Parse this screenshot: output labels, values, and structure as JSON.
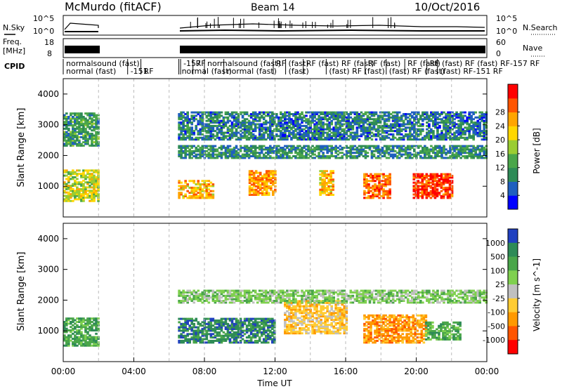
{
  "header": {
    "station": "McMurdo (fitACF)",
    "beam": "Beam 14",
    "date": "10/Oct/2016"
  },
  "noise_panel": {
    "left_label": "N.Sky",
    "right_label": "N.Search",
    "ticks": [
      "10^5",
      "10^0"
    ]
  },
  "freq_panel": {
    "left_label_1": "Freq.",
    "left_label_2": "[MHz]",
    "right_label": "Nave",
    "left_ticks": [
      "18",
      "8"
    ],
    "right_ticks": [
      "60",
      "0"
    ]
  },
  "cpid": {
    "label": "CPID",
    "row1": [
      {
        "t": 0.0,
        "text": "normalsound (fast)"
      },
      {
        "t": 6.65,
        "text": "-157"
      },
      {
        "t": 7.35,
        "text": "RF"
      },
      {
        "t": 8.0,
        "text": "normalsound (fast)"
      },
      {
        "t": 11.9,
        "text": "RF (fast)"
      },
      {
        "t": 13.6,
        "text": "RF (fast) RF (fast)"
      },
      {
        "t": 17.1,
        "text": "RF (fast)"
      },
      {
        "t": 19.35,
        "text": "RF (fast)"
      },
      {
        "t": 20.6,
        "text": "RF (fast) RF (fast) RF-157 RF"
      }
    ],
    "row2": [
      {
        "t": 0.0,
        "text": "normal (fast)"
      },
      {
        "t": 3.65,
        "text": "-151"
      },
      {
        "t": 4.4,
        "text": "RF"
      },
      {
        "t": 6.55,
        "text": "normal (fast)"
      },
      {
        "t": 9.1,
        "text": "normal (fast)"
      },
      {
        "t": 12.6,
        "text": "(fast)"
      },
      {
        "t": 14.9,
        "text": "(fast) RF (fast)"
      },
      {
        "t": 18.3,
        "text": "(fast) RF (fast)"
      },
      {
        "t": 21.2,
        "text": "(fast) RF-151 RF"
      }
    ]
  },
  "chart_data": [
    {
      "type": "heatmap",
      "name": "power",
      "ylabel": "Slant Range [km]",
      "xlim": [
        0,
        24
      ],
      "ylim": [
        0,
        4500
      ],
      "yticks": [
        1000,
        2000,
        3000,
        4000
      ],
      "colorbar": {
        "label": "Power [dB]",
        "ticks": [
          "4",
          "8",
          "12",
          "16",
          "20",
          "24",
          "28"
        ],
        "colors": [
          "#0000ff",
          "#1f5fbf",
          "#2e8b57",
          "#4aa64a",
          "#9acd32",
          "#ffd700",
          "#ffa500",
          "#ff5500",
          "#ff0000"
        ]
      },
      "data_gap_hours": [
        2.0,
        6.5
      ],
      "echo_regions": [
        {
          "t0": 0.0,
          "t1": 2.0,
          "r0": 500,
          "r1": 1500,
          "level": 0.55
        },
        {
          "t0": 0.0,
          "t1": 2.0,
          "r0": 2300,
          "r1": 3400,
          "level": 0.3
        },
        {
          "t0": 6.5,
          "t1": 8.5,
          "r0": 600,
          "r1": 1200,
          "level": 0.7
        },
        {
          "t0": 10.5,
          "t1": 12.0,
          "r0": 700,
          "r1": 1500,
          "level": 0.75
        },
        {
          "t0": 14.5,
          "t1": 15.3,
          "r0": 700,
          "r1": 1500,
          "level": 0.7
        },
        {
          "t0": 17.0,
          "t1": 18.5,
          "r0": 600,
          "r1": 1400,
          "level": 0.85
        },
        {
          "t0": 19.8,
          "t1": 22.0,
          "r0": 600,
          "r1": 1400,
          "level": 0.95
        },
        {
          "t0": 6.5,
          "t1": 24.0,
          "r0": 1900,
          "r1": 2300,
          "level": 0.25
        },
        {
          "t0": 6.5,
          "t1": 24.0,
          "r0": 2500,
          "r1": 3400,
          "level": 0.2
        }
      ]
    },
    {
      "type": "heatmap",
      "name": "velocity",
      "ylabel": "Slant Range [km]",
      "xlabel": "Time UT",
      "xlim": [
        0,
        24
      ],
      "ylim": [
        0,
        4500
      ],
      "yticks": [
        1000,
        2000,
        3000,
        4000
      ],
      "xticks": [
        "00:00",
        "04:00",
        "08:00",
        "12:00",
        "16:00",
        "20:00",
        "00:00"
      ],
      "colorbar": {
        "label": "Velocity [m s^-1]",
        "ticks": [
          "1000",
          "500",
          "100",
          "25",
          "-25",
          "-100",
          "-500",
          "-1000"
        ],
        "colors": [
          "#2040c0",
          "#2e8b57",
          "#4aa64a",
          "#7fd04f",
          "#c0c0c0",
          "#ffcc33",
          "#ff9900",
          "#ff5500",
          "#ff0000"
        ]
      },
      "data_gap_hours": [
        2.0,
        6.5
      ],
      "echo_regions": [
        {
          "t0": 0.0,
          "t1": 2.0,
          "r0": 500,
          "r1": 1400,
          "v": "100"
        },
        {
          "t0": 6.5,
          "t1": 12.0,
          "r0": 600,
          "r1": 1400,
          "v": "500"
        },
        {
          "t0": 12.5,
          "t1": 16.0,
          "r0": 900,
          "r1": 2000,
          "v": "-100"
        },
        {
          "t0": 17.0,
          "t1": 20.5,
          "r0": 600,
          "r1": 1500,
          "v": "-500"
        },
        {
          "t0": 20.5,
          "t1": 22.5,
          "r0": 700,
          "r1": 1300,
          "v": "100"
        },
        {
          "t0": 6.5,
          "t1": 24.0,
          "r0": 1900,
          "r1": 2300,
          "v": "25"
        }
      ]
    }
  ]
}
